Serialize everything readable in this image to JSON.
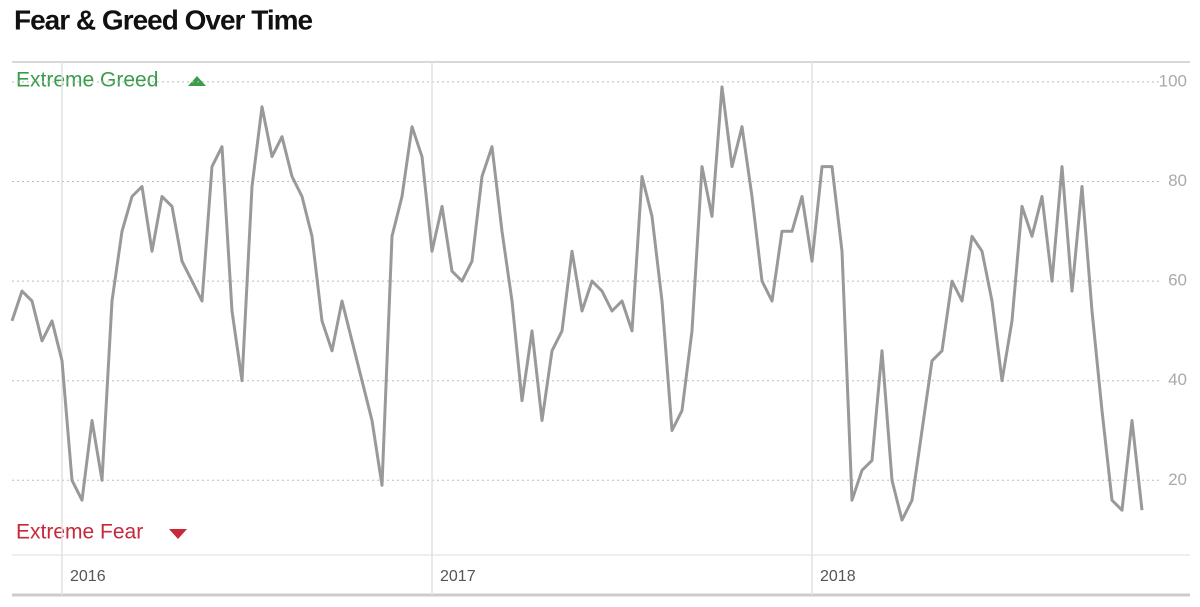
{
  "chart_data": {
    "type": "line",
    "title": "Fear & Greed Over Time",
    "annotations": [
      "Extreme Greed",
      "Extreme Fear"
    ],
    "categories": [
      null,
      null,
      null,
      null,
      null,
      "2016",
      null,
      null,
      null,
      null,
      null,
      null,
      null,
      null,
      null,
      null,
      null,
      null,
      null,
      null,
      null,
      null,
      null,
      null,
      null,
      null,
      null,
      null,
      null,
      null,
      null,
      null,
      null,
      null,
      null,
      null,
      null,
      null,
      null,
      null,
      null,
      null,
      "2017",
      null,
      null,
      null,
      null,
      null,
      null,
      null,
      null,
      null,
      null,
      null,
      null,
      null,
      null,
      null,
      null,
      null,
      null,
      null,
      null,
      null,
      null,
      null,
      null,
      null,
      null,
      null,
      null,
      null,
      null,
      null,
      null,
      null,
      null,
      null,
      null,
      null,
      "2018",
      null,
      null,
      null,
      null,
      null,
      null,
      null,
      null,
      null,
      null,
      null,
      null,
      null,
      null,
      null,
      null,
      null,
      null,
      null,
      null,
      null,
      null,
      null,
      null,
      null,
      null,
      null,
      null,
      null,
      null,
      null,
      null,
      null
    ],
    "values": [
      52,
      58,
      56,
      48,
      52,
      44,
      20,
      16,
      32,
      20,
      56,
      70,
      77,
      79,
      66,
      77,
      75,
      64,
      60,
      56,
      83,
      87,
      54,
      40,
      79,
      95,
      85,
      89,
      81,
      77,
      69,
      52,
      46,
      56,
      48,
      40,
      32,
      19,
      69,
      77,
      91,
      85,
      66,
      75,
      62,
      60,
      64,
      81,
      87,
      70,
      56,
      36,
      50,
      32,
      46,
      50,
      66,
      54,
      60,
      58,
      54,
      56,
      50,
      81,
      73,
      56,
      30,
      34,
      50,
      83,
      73,
      99,
      83,
      91,
      77,
      60,
      56,
      70,
      70,
      77,
      64,
      83,
      83,
      66,
      16,
      22,
      24,
      46,
      20,
      12,
      16,
      30,
      44,
      46,
      60,
      56,
      69,
      66,
      56,
      40,
      52,
      75,
      69,
      77,
      60,
      83,
      58,
      79,
      54,
      34,
      16,
      14,
      32,
      14
    ],
    "color": "#999999",
    "ylim": [
      5,
      104
    ],
    "yticks": [
      20,
      40,
      60,
      80,
      100
    ],
    "grid": true
  }
}
